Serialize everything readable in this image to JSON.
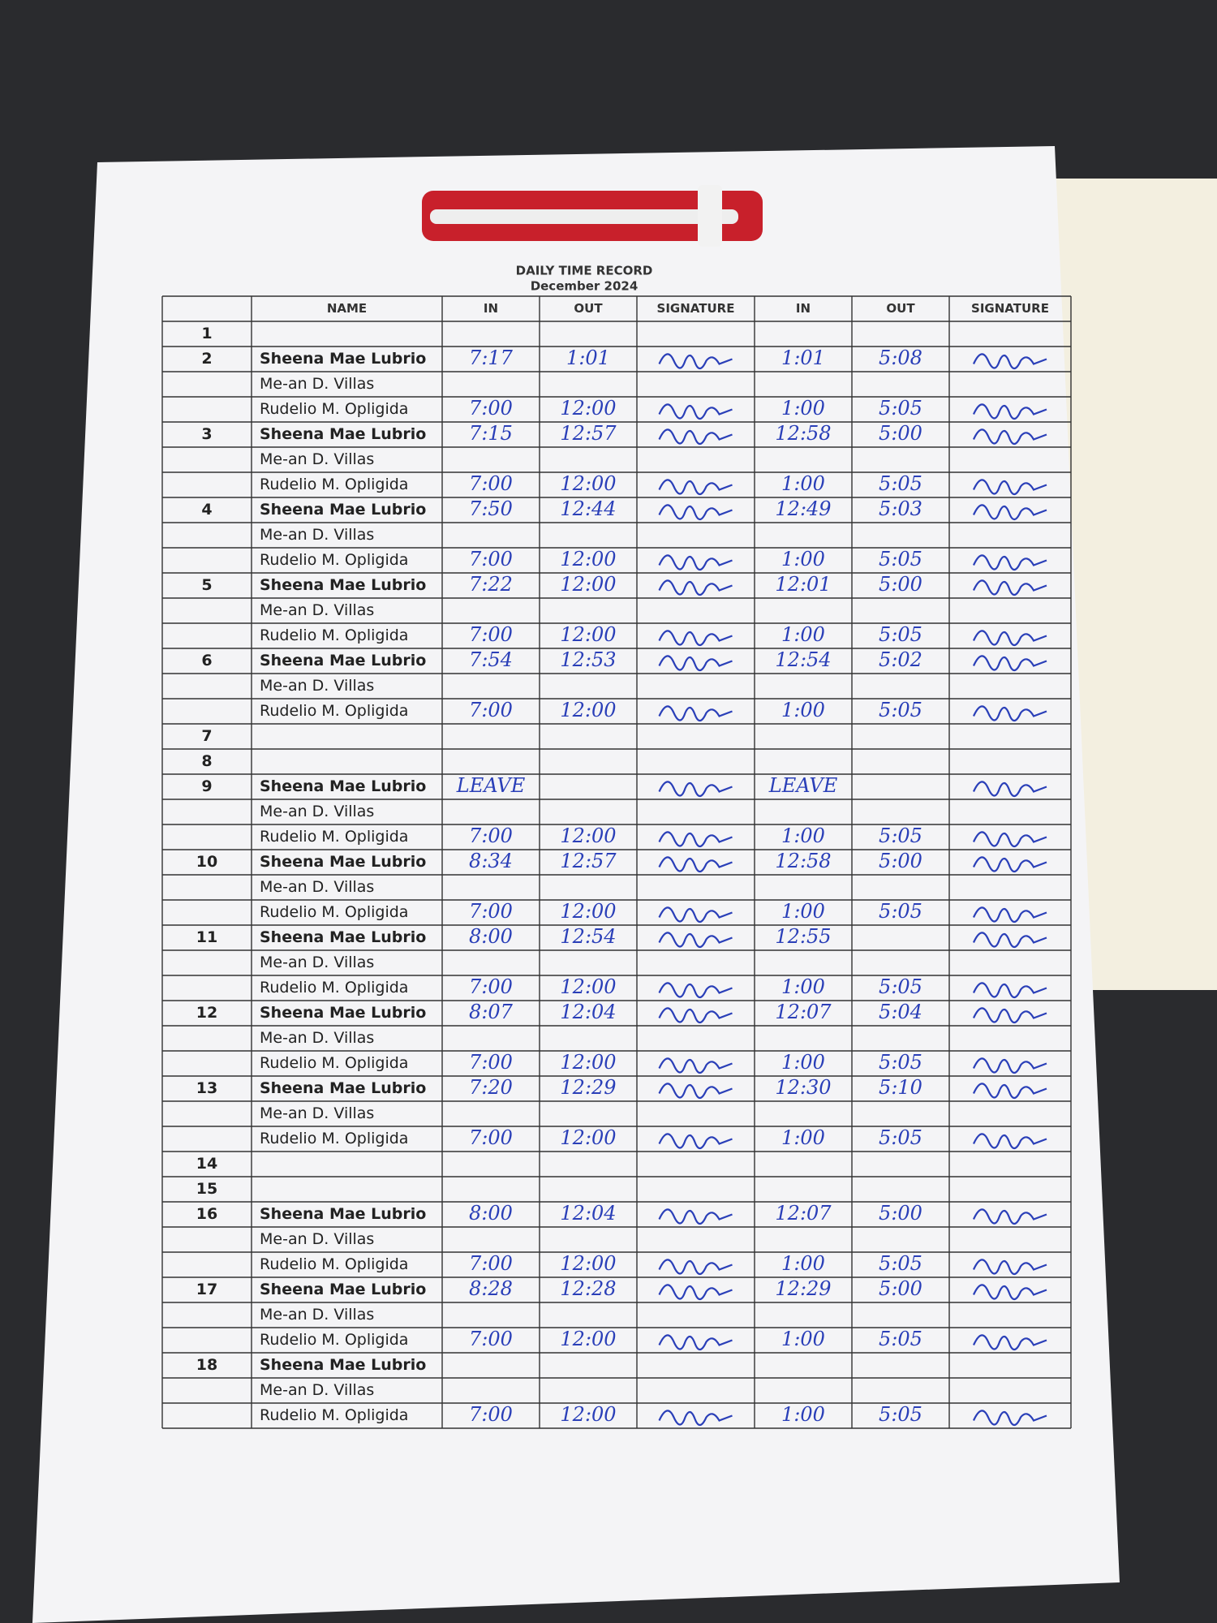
{
  "document": {
    "title": "DAILY TIME RECORD",
    "subtitle": "December 2024",
    "columns": [
      "NAME",
      "IN",
      "OUT",
      "SIGNATURE",
      "IN",
      "OUT",
      "SIGNATURE"
    ],
    "rows": [
      {
        "day": "1"
      },
      {
        "day": "2",
        "name": "Sheena Mae Lubrio",
        "am_in": "7:17",
        "am_out": "1:01",
        "pm_in": "1:01",
        "pm_out": "5:08"
      },
      {
        "name": "Me-an D. Villas"
      },
      {
        "name": "Rudelio M. Opligida",
        "am_in": "7:00",
        "am_out": "12:00",
        "pm_in": "1:00",
        "pm_out": "5:05"
      },
      {
        "day": "3",
        "name": "Sheena Mae Lubrio",
        "am_in": "7:15",
        "am_out": "12:57",
        "pm_in": "12:58",
        "pm_out": "5:00"
      },
      {
        "name": "Me-an D. Villas"
      },
      {
        "name": "Rudelio M. Opligida",
        "am_in": "7:00",
        "am_out": "12:00",
        "pm_in": "1:00",
        "pm_out": "5:05"
      },
      {
        "day": "4",
        "name": "Sheena Mae Lubrio",
        "am_in": "7:50",
        "am_out": "12:44",
        "pm_in": "12:49",
        "pm_out": "5:03"
      },
      {
        "name": "Me-an D. Villas"
      },
      {
        "name": "Rudelio M. Opligida",
        "am_in": "7:00",
        "am_out": "12:00",
        "pm_in": "1:00",
        "pm_out": "5:05"
      },
      {
        "day": "5",
        "name": "Sheena Mae Lubrio",
        "am_in": "7:22",
        "am_out": "12:00",
        "pm_in": "12:01",
        "pm_out": "5:00"
      },
      {
        "name": "Me-an D. Villas"
      },
      {
        "name": "Rudelio M. Opligida",
        "am_in": "7:00",
        "am_out": "12:00",
        "pm_in": "1:00",
        "pm_out": "5:05"
      },
      {
        "day": "6",
        "name": "Sheena Mae Lubrio",
        "am_in": "7:54",
        "am_out": "12:53",
        "pm_in": "12:54",
        "pm_out": "5:02"
      },
      {
        "name": "Me-an D. Villas"
      },
      {
        "name": "Rudelio M. Opligida",
        "am_in": "7:00",
        "am_out": "12:00",
        "pm_in": "1:00",
        "pm_out": "5:05"
      },
      {
        "day": "7"
      },
      {
        "day": "8"
      },
      {
        "day": "9",
        "name": "Sheena Mae Lubrio",
        "am_in": "LEAVE",
        "pm_in": "LEAVE"
      },
      {
        "name": "Me-an D. Villas"
      },
      {
        "name": "Rudelio M. Opligida",
        "am_in": "7:00",
        "am_out": "12:00",
        "pm_in": "1:00",
        "pm_out": "5:05"
      },
      {
        "day": "10",
        "name": "Sheena Mae Lubrio",
        "am_in": "8:34",
        "am_out": "12:57",
        "pm_in": "12:58",
        "pm_out": "5:00"
      },
      {
        "name": "Me-an D. Villas"
      },
      {
        "name": "Rudelio M. Opligida",
        "am_in": "7:00",
        "am_out": "12:00",
        "pm_in": "1:00",
        "pm_out": "5:05"
      },
      {
        "day": "11",
        "name": "Sheena Mae Lubrio",
        "am_in": "8:00",
        "am_out": "12:54",
        "pm_in": "12:55"
      },
      {
        "name": "Me-an D. Villas"
      },
      {
        "name": "Rudelio M. Opligida",
        "am_in": "7:00",
        "am_out": "12:00",
        "pm_in": "1:00",
        "pm_out": "5:05"
      },
      {
        "day": "12",
        "name": "Sheena Mae Lubrio",
        "am_in": "8:07",
        "am_out": "12:04",
        "pm_in": "12:07",
        "pm_out": "5:04"
      },
      {
        "name": "Me-an D. Villas"
      },
      {
        "name": "Rudelio M. Opligida",
        "am_in": "7:00",
        "am_out": "12:00",
        "pm_in": "1:00",
        "pm_out": "5:05"
      },
      {
        "day": "13",
        "name": "Sheena Mae Lubrio",
        "am_in": "7:20",
        "am_out": "12:29",
        "pm_in": "12:30",
        "pm_out": "5:10"
      },
      {
        "name": "Me-an D. Villas"
      },
      {
        "name": "Rudelio M. Opligida",
        "am_in": "7:00",
        "am_out": "12:00",
        "pm_in": "1:00",
        "pm_out": "5:05"
      },
      {
        "day": "14"
      },
      {
        "day": "15"
      },
      {
        "day": "16",
        "name": "Sheena Mae Lubrio",
        "am_in": "8:00",
        "am_out": "12:04",
        "pm_in": "12:07",
        "pm_out": "5:00"
      },
      {
        "name": "Me-an D. Villas"
      },
      {
        "name": "Rudelio M. Opligida",
        "am_in": "7:00",
        "am_out": "12:00",
        "pm_in": "1:00",
        "pm_out": "5:05"
      },
      {
        "day": "17",
        "name": "Sheena Mae Lubrio",
        "am_in": "8:28",
        "am_out": "12:28",
        "pm_in": "12:29",
        "pm_out": "5:00"
      },
      {
        "name": "Me-an D. Villas"
      },
      {
        "name": "Rudelio M. Opligida",
        "am_in": "7:00",
        "am_out": "12:00",
        "pm_in": "1:00",
        "pm_out": "5:05"
      },
      {
        "day": "18",
        "name": "Sheena Mae Lubrio"
      },
      {
        "name": "Me-an D. Villas"
      },
      {
        "name": "Rudelio M. Opligida",
        "am_in": "7:00",
        "am_out": "12:00",
        "pm_in": "1:00",
        "pm_out": "5:05"
      }
    ]
  }
}
